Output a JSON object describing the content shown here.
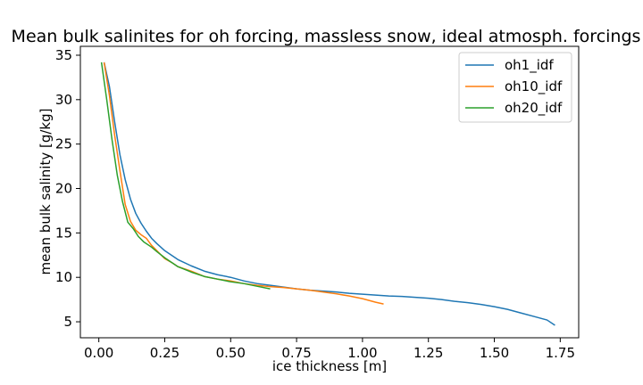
{
  "chart_data": {
    "type": "line",
    "title": "Mean bulk salinites for oh forcing, massless snow, ideal atmosph. forcings",
    "xlabel": "ice thickness [m]",
    "ylabel": "mean bulk salinity [g/kg]",
    "xlim": [
      -0.07,
      1.82
    ],
    "ylim": [
      3.2,
      36.0
    ],
    "xticks": [
      0.0,
      0.25,
      0.5,
      0.75,
      1.0,
      1.25,
      1.5,
      1.75
    ],
    "xtick_labels": [
      "0.00",
      "0.25",
      "0.50",
      "0.75",
      "1.00",
      "1.25",
      "1.50",
      "1.75"
    ],
    "yticks": [
      5,
      10,
      15,
      20,
      25,
      30,
      35
    ],
    "ytick_labels": [
      "5",
      "10",
      "15",
      "20",
      "25",
      "30",
      "35"
    ],
    "grid": false,
    "legend_position": "top-right",
    "series": [
      {
        "name": "oh1_idf",
        "color": "#1f77b4",
        "x": [
          0.02,
          0.04,
          0.06,
          0.08,
          0.1,
          0.12,
          0.14,
          0.16,
          0.18,
          0.2,
          0.22,
          0.25,
          0.28,
          0.3,
          0.35,
          0.4,
          0.45,
          0.5,
          0.55,
          0.6,
          0.65,
          0.7,
          0.75,
          0.8,
          0.85,
          0.9,
          0.95,
          1.0,
          1.05,
          1.1,
          1.15,
          1.2,
          1.25,
          1.3,
          1.35,
          1.4,
          1.45,
          1.5,
          1.55,
          1.6,
          1.65,
          1.7,
          1.73
        ],
        "y": [
          34.2,
          31.5,
          27.5,
          23.8,
          21.0,
          18.8,
          17.2,
          16.1,
          15.2,
          14.4,
          13.8,
          13.0,
          12.4,
          12.0,
          11.3,
          10.7,
          10.3,
          10.0,
          9.6,
          9.3,
          9.1,
          8.9,
          8.7,
          8.55,
          8.45,
          8.35,
          8.2,
          8.1,
          8.0,
          7.9,
          7.85,
          7.75,
          7.65,
          7.5,
          7.3,
          7.15,
          6.95,
          6.7,
          6.4,
          6.0,
          5.6,
          5.2,
          4.6
        ]
      },
      {
        "name": "oh10_idf",
        "color": "#ff7f0e",
        "x": [
          0.02,
          0.04,
          0.06,
          0.08,
          0.1,
          0.12,
          0.14,
          0.16,
          0.18,
          0.2,
          0.22,
          0.25,
          0.28,
          0.3,
          0.35,
          0.4,
          0.45,
          0.5,
          0.55,
          0.6,
          0.65,
          0.7,
          0.75,
          0.8,
          0.85,
          0.9,
          0.95,
          1.0,
          1.05,
          1.08
        ],
        "y": [
          34.2,
          30.5,
          26.0,
          22.0,
          18.2,
          16.3,
          15.3,
          14.8,
          14.4,
          13.6,
          13.0,
          12.1,
          11.6,
          11.2,
          10.7,
          10.1,
          9.8,
          9.6,
          9.3,
          9.1,
          8.95,
          8.85,
          8.7,
          8.55,
          8.35,
          8.15,
          7.9,
          7.6,
          7.2,
          7.0
        ]
      },
      {
        "name": "oh20_idf",
        "color": "#2ca02c",
        "x": [
          0.01,
          0.03,
          0.05,
          0.07,
          0.09,
          0.11,
          0.13,
          0.15,
          0.17,
          0.2,
          0.22,
          0.25,
          0.28,
          0.3,
          0.35,
          0.4,
          0.45,
          0.5,
          0.55,
          0.6,
          0.65
        ],
        "y": [
          34.2,
          30.0,
          25.5,
          21.5,
          18.5,
          16.2,
          15.5,
          14.6,
          14.0,
          13.4,
          12.9,
          12.2,
          11.6,
          11.2,
          10.6,
          10.1,
          9.8,
          9.5,
          9.3,
          9.0,
          8.7
        ]
      }
    ]
  }
}
